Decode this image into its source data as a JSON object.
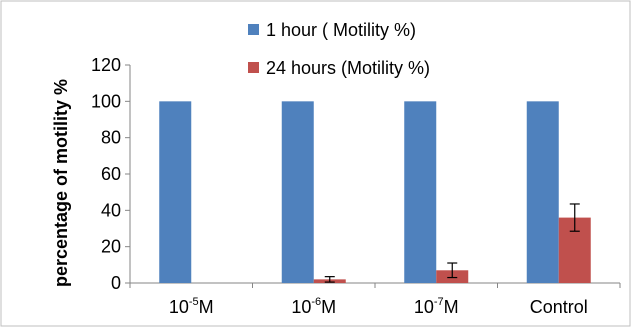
{
  "chart_data": {
    "type": "bar",
    "categories": [
      {
        "base": "10",
        "exp": "-5",
        "unit": "M"
      },
      {
        "base": "10",
        "exp": "-6",
        "unit": "M"
      },
      {
        "base": "10",
        "exp": "-7",
        "unit": "M"
      },
      {
        "base": "Control",
        "exp": "",
        "unit": ""
      }
    ],
    "series": [
      {
        "name": "1 hour ( Motility %)",
        "color": "#4f81bd",
        "values": [
          100,
          100,
          100,
          100
        ],
        "errors": [
          0,
          0,
          0,
          0
        ]
      },
      {
        "name": "24 hours (Motility %)",
        "color": "#c0504d",
        "values": [
          0,
          2,
          7,
          36
        ],
        "errors": [
          0,
          1.5,
          4,
          7.5
        ]
      }
    ],
    "title": "",
    "xlabel": "",
    "ylabel": "percentage of motility %",
    "ylim": [
      0,
      120
    ],
    "yticks": [
      0,
      20,
      40,
      60,
      80,
      100,
      120
    ],
    "grid": false,
    "legend_position": "top-right"
  }
}
